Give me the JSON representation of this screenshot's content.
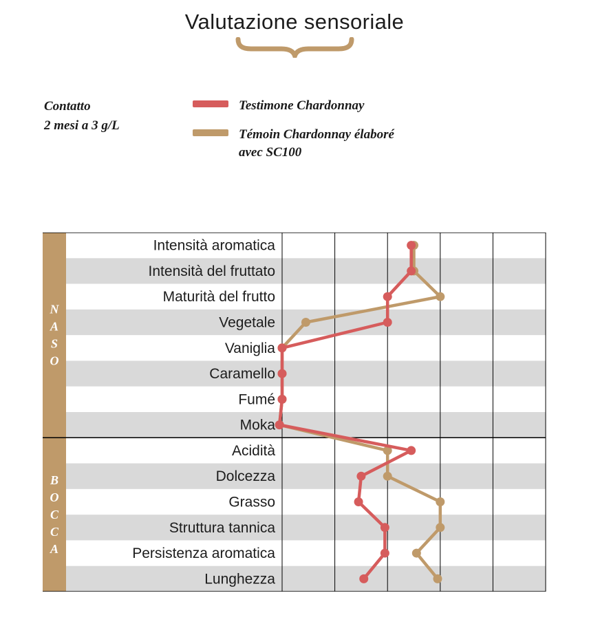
{
  "page": {
    "title": "Valutazione sensoriale"
  },
  "legend": {
    "context_line1": "Contatto",
    "context_line2": "2 mesi a 3 g/L",
    "items": [
      {
        "label": "Testimone Chardonnay",
        "label2": "",
        "color": "#d65c5c"
      },
      {
        "label": "Témoin Chardonnay élaboré",
        "label2": "avec SC100",
        "color": "#bf9a6a"
      }
    ]
  },
  "chart_data": {
    "type": "line",
    "orientation": "horizontal-categories",
    "title": "Valutazione sensoriale",
    "xlim": [
      0,
      5
    ],
    "gridline_values": [
      0,
      1,
      2,
      3,
      4,
      5
    ],
    "legend_position": "top-left",
    "grid": true,
    "groups": [
      {
        "label": "NASO",
        "rows": 8
      },
      {
        "label": "BOCCA",
        "rows": 6
      }
    ],
    "categories": [
      "Intensità aromatica",
      "Intensità del fruttato",
      "Maturità del frutto",
      "Vegetale",
      "Vaniglia",
      "Caramello",
      "Fumé",
      "Moka",
      "Acidità",
      "Dolcezza",
      "Grasso",
      "Struttura tannica",
      "Persistenza aromatica",
      "Lunghezza"
    ],
    "series": [
      {
        "name": "Testimone Chardonnay",
        "color": "#d65c5c",
        "values": [
          2.45,
          2.45,
          2.0,
          2.0,
          0,
          0,
          0,
          -0.05,
          2.45,
          1.5,
          1.45,
          1.95,
          1.95,
          1.55
        ]
      },
      {
        "name": "Témoin Chardonnay élaboré avec SC100",
        "color": "#bf9a6a",
        "values": [
          2.5,
          2.5,
          3.0,
          0.45,
          0,
          0,
          0,
          -0.05,
          2.0,
          2.0,
          3.0,
          3.0,
          2.55,
          2.95
        ]
      }
    ],
    "colors": {
      "stripe": "#d9d9d9",
      "band": "#bf9a6a",
      "grid": "#000000",
      "label_text": "#1c1c1c",
      "group_letter": "#ffffff"
    }
  }
}
